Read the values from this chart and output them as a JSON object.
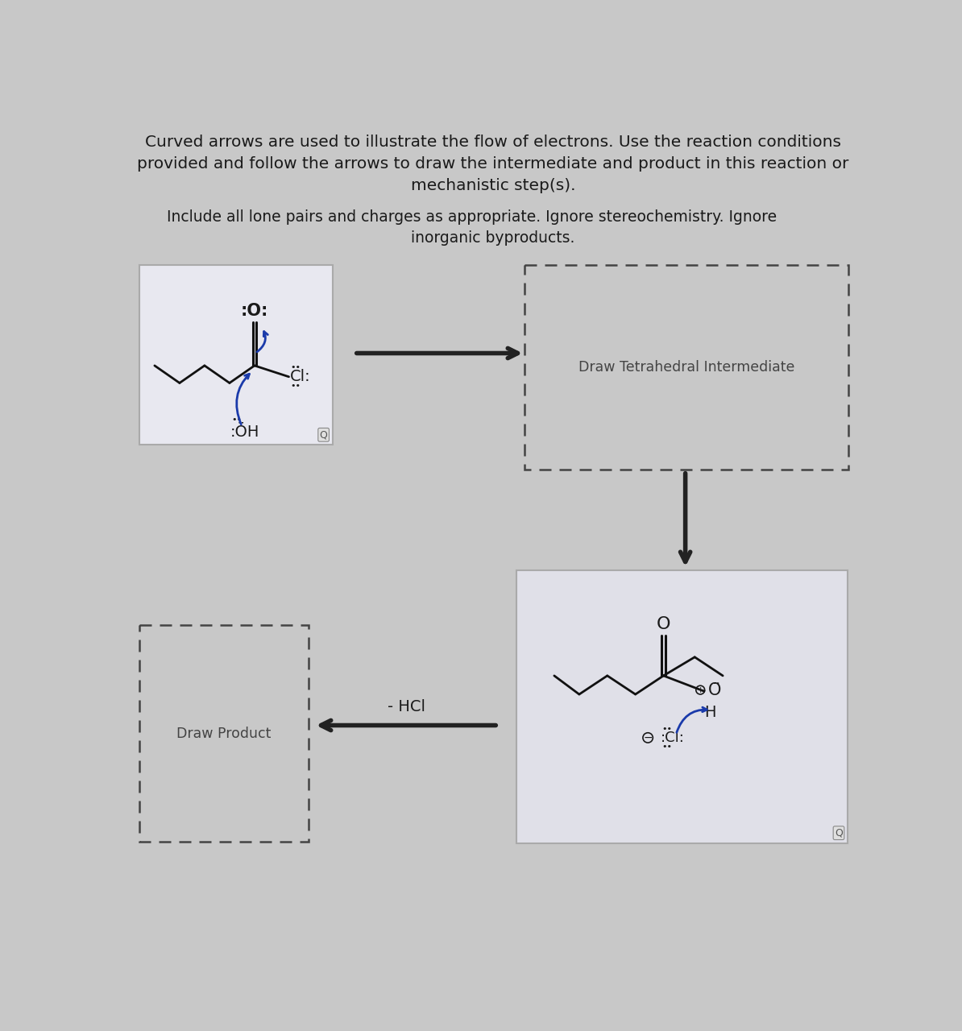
{
  "background_color": "#c8c8c8",
  "title_line1": "Curved arrows are used to illustrate the flow of electrons. Use the reaction conditions",
  "title_line2": "provided and follow the arrows to draw the intermediate and product in this reaction or",
  "title_line3": "mechanistic step(s).",
  "subtitle_line1": "Include all lone pairs and charges as appropriate. Ignore stereochemistry. Ignore",
  "subtitle_line2": "inorganic byproducts.",
  "box1_label": "Draw Product",
  "box2_label": "Draw Tetrahedral Intermediate",
  "arrow_label": "- HCl",
  "text_color": "#1a1a1a",
  "dashed_color": "#444444",
  "arrow_color": "#222222",
  "blue_arrow_color": "#1a3aaa",
  "reactant_box_bg": "#e8e8f0",
  "solid_box_bg": "#e0e0e8",
  "dashed_box_bg": "#c8c8c8"
}
